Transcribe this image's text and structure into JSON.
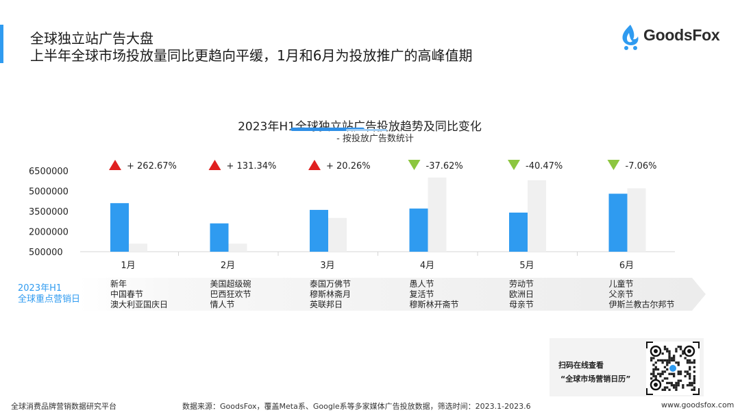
{
  "header": {
    "title": "全球独立站广告大盘",
    "subtitle": "上半年全球市场投放量同比更趋向平缓，1月和6月为投放推广的高峰值期"
  },
  "logo": {
    "text": "GoodsFox"
  },
  "colors": {
    "accent": "#2f9bf0",
    "bar_current": "#2f9bf0",
    "bar_prior": "#f0f0f0",
    "up": "#e02020",
    "down": "#8cc63f"
  },
  "chart_data": {
    "type": "bar",
    "title": "2023年H1全球独立站广告投放趋势及同比变化",
    "subtitle": "- 按投放广告数统计",
    "categories": [
      "1月",
      "2月",
      "3月",
      "4月",
      "5月",
      "6月"
    ],
    "series": [
      {
        "name": "",
        "values": [
          4100000,
          2600000,
          3600000,
          3700000,
          3400000,
          4800000
        ]
      },
      {
        "name": "",
        "values": [
          1100000,
          1100000,
          3000000,
          6000000,
          5800000,
          5200000
        ]
      }
    ],
    "yticks": [
      "6500000",
      "5000000",
      "3500000",
      "2000000",
      "500000"
    ],
    "ytick_values": [
      6500000,
      5000000,
      3500000,
      2000000,
      500000
    ],
    "ylim": [
      500000,
      6500000
    ],
    "changes": [
      {
        "dir": "up",
        "label": "+ 262.67%"
      },
      {
        "dir": "up",
        "label": "+ 131.34%"
      },
      {
        "dir": "up",
        "label": "+ 20.26%"
      },
      {
        "dir": "down",
        "label": "-37.62%"
      },
      {
        "dir": "down",
        "label": "-40.47%"
      },
      {
        "dir": "down",
        "label": "-7.06%"
      }
    ]
  },
  "calendar": {
    "label_line1": "2023年H1",
    "label_line2": "全球重点营销日历",
    "months": [
      {
        "line1": "新年",
        "line2": "中国春节",
        "line3": "澳大利亚国庆日"
      },
      {
        "line1": "美国超级碗",
        "line2": "巴西狂欢节",
        "line3": "情人节"
      },
      {
        "line1": "泰国万佛节",
        "line2": "穆斯林斋月",
        "line3": "英联邦日"
      },
      {
        "line1": "愚人节",
        "line2": "复活节",
        "line3": "穆斯林开斋节"
      },
      {
        "line1": "劳动节",
        "line2": "欧洲日",
        "line3": "母亲节"
      },
      {
        "line1": "儿童节",
        "line2": "父亲节",
        "line3": "伊斯兰教古尔邦节"
      }
    ]
  },
  "qr_card": {
    "line1": "扫码在线查看",
    "line2": "“全球市场营销日历”"
  },
  "footer": {
    "left": "全球消费品牌营销数据研究平台",
    "source": "数据来源：GoodsFox，覆盖Meta系、Google系等多家媒体广告投放数据，筛选时间：2023.1-2023.6",
    "url": "www.goodsfox.com"
  }
}
